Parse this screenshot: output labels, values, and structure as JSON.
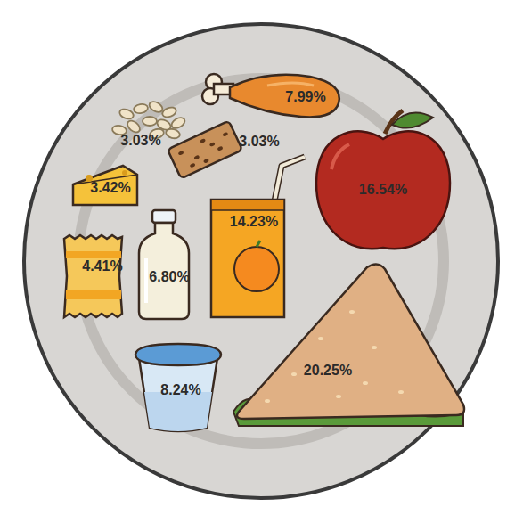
{
  "chart_data": {
    "type": "pictorial",
    "categories": [
      null,
      null,
      null,
      null,
      null,
      null,
      null,
      null,
      null,
      null
    ],
    "values": [
      7.99,
      3.03,
      3.03,
      3.42,
      16.54,
      14.23,
      4.41,
      6.8,
      8.24,
      20.25
    ],
    "value_labels": [
      "7.99%",
      "3.03%",
      "3.03%",
      "3.42%",
      "16.54%",
      "14.23%",
      "4.41%",
      "6.80%",
      "8.24%",
      "20.25%"
    ],
    "colors": [
      "#e8892e",
      "#f0e3c8",
      "#c8915a",
      "#f5c23a",
      "#b32a20",
      "#f5a623",
      "#f5c85a",
      "#f4efdc",
      "#d8e8f5",
      "#e0b084"
    ],
    "data_labels": true
  }
}
